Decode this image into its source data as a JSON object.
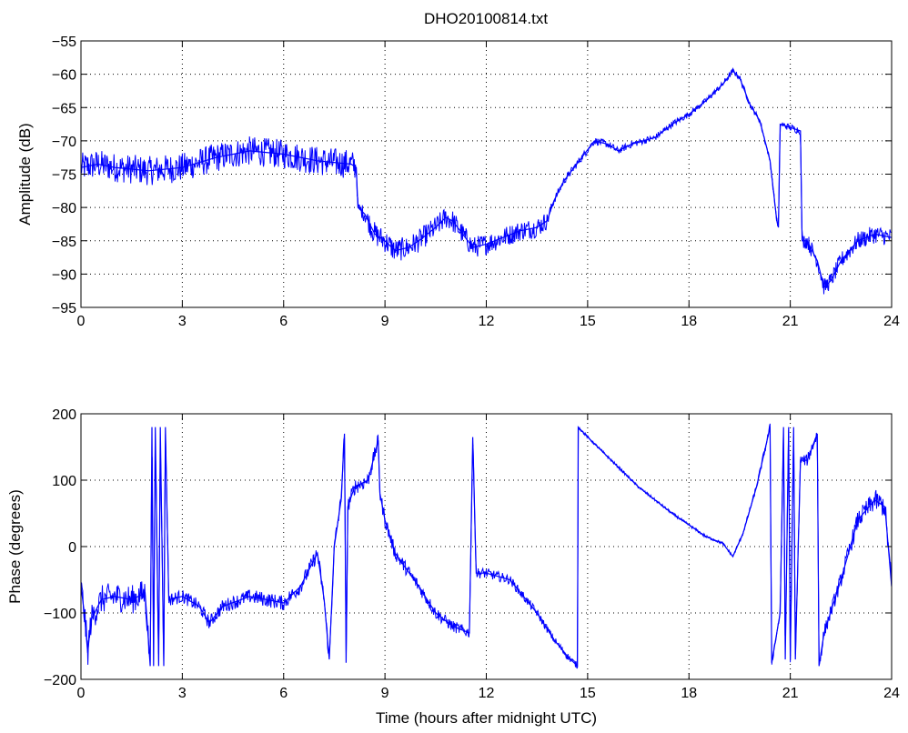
{
  "figure": {
    "title": "DHO20100814.txt",
    "background": "#ffffff",
    "line_color": "#0000ff",
    "grid_color": "#000000"
  },
  "chart_data": [
    {
      "type": "line",
      "title": "DHO20100814.txt",
      "xlabel": "",
      "ylabel": "Amplitude (dB)",
      "xlim": [
        0,
        24
      ],
      "ylim": [
        -95,
        -55
      ],
      "xticks": [
        0,
        3,
        6,
        9,
        12,
        15,
        18,
        21,
        24
      ],
      "yticks": [
        -95,
        -90,
        -85,
        -80,
        -75,
        -70,
        -65,
        -60,
        -55
      ],
      "xtick_labels": [
        "0",
        "3",
        "6",
        "9",
        "12",
        "15",
        "18",
        "21",
        "24"
      ],
      "ytick_labels": [
        "−95",
        "−90",
        "−85",
        "−80",
        "−75",
        "−70",
        "−65",
        "−60",
        "−55"
      ],
      "grid": true,
      "series": [
        {
          "color": "#0000ff",
          "noise_amplitude": [
            [
              0,
              2.2
            ],
            [
              8.1,
              2.2
            ],
            [
              8.2,
              0.8
            ],
            [
              8.6,
              1.8
            ],
            [
              13.7,
              1.5
            ],
            [
              14,
              0.6
            ],
            [
              20.4,
              0.4
            ],
            [
              21.3,
              0.6
            ],
            [
              21.4,
              1.2
            ],
            [
              24,
              1.4
            ]
          ],
          "points": [
            [
              0,
              -74
            ],
            [
              0.5,
              -73.5
            ],
            [
              1,
              -74
            ],
            [
              2,
              -74.5
            ],
            [
              3,
              -74
            ],
            [
              4,
              -72.5
            ],
            [
              5,
              -71.5
            ],
            [
              6,
              -72
            ],
            [
              7,
              -73
            ],
            [
              8,
              -73.5
            ],
            [
              8.15,
              -74
            ],
            [
              8.2,
              -80
            ],
            [
              8.4,
              -81
            ],
            [
              8.7,
              -84
            ],
            [
              9,
              -85
            ],
            [
              9.3,
              -86.5
            ],
            [
              9.7,
              -86
            ],
            [
              10,
              -85
            ],
            [
              10.5,
              -83
            ],
            [
              10.8,
              -81.5
            ],
            [
              11,
              -82
            ],
            [
              11.3,
              -84
            ],
            [
              11.6,
              -86
            ],
            [
              12,
              -85.5
            ],
            [
              12.5,
              -84.5
            ],
            [
              13,
              -83.5
            ],
            [
              13.5,
              -83
            ],
            [
              13.8,
              -82
            ],
            [
              14,
              -79
            ],
            [
              14.3,
              -76
            ],
            [
              14.6,
              -74
            ],
            [
              14.9,
              -72
            ],
            [
              15.2,
              -70
            ],
            [
              15.6,
              -70.5
            ],
            [
              15.9,
              -71.5
            ],
            [
              16.3,
              -70.5
            ],
            [
              17,
              -69.5
            ],
            [
              17.5,
              -67.5
            ],
            [
              18,
              -66
            ],
            [
              18.5,
              -64
            ],
            [
              19,
              -61.5
            ],
            [
              19.3,
              -59.5
            ],
            [
              19.5,
              -60.5
            ],
            [
              19.8,
              -64.5
            ],
            [
              20.1,
              -67
            ],
            [
              20.4,
              -73
            ],
            [
              20.6,
              -82
            ],
            [
              20.65,
              -83
            ],
            [
              20.7,
              -67.5
            ],
            [
              21,
              -68
            ],
            [
              21.3,
              -68.5
            ],
            [
              21.35,
              -85
            ],
            [
              21.5,
              -85
            ],
            [
              21.8,
              -88
            ],
            [
              22,
              -92
            ],
            [
              22.2,
              -91
            ],
            [
              22.5,
              -88
            ],
            [
              23,
              -85
            ],
            [
              23.5,
              -84
            ],
            [
              24,
              -84.5
            ]
          ]
        }
      ]
    },
    {
      "type": "line",
      "title": "",
      "xlabel": "Time (hours after midnight UTC)",
      "ylabel": "Phase (degrees)",
      "xlim": [
        0,
        24
      ],
      "ylim": [
        -200,
        200
      ],
      "xticks": [
        0,
        3,
        6,
        9,
        12,
        15,
        18,
        21,
        24
      ],
      "yticks": [
        -200,
        -100,
        0,
        100,
        200
      ],
      "xtick_labels": [
        "0",
        "3",
        "6",
        "9",
        "12",
        "15",
        "18",
        "21",
        "24"
      ],
      "ytick_labels": [
        "−200",
        "−100",
        "0",
        "100",
        "200"
      ],
      "grid": true,
      "series": [
        {
          "color": "#0000ff",
          "noise_amplitude": [
            [
              0,
              22
            ],
            [
              2,
              22
            ],
            [
              2.6,
              10
            ],
            [
              8,
              12
            ],
            [
              11.8,
              8
            ],
            [
              14.7,
              5
            ],
            [
              14.75,
              2
            ],
            [
              19.4,
              2
            ],
            [
              20.4,
              6
            ],
            [
              22,
              10
            ],
            [
              24,
              18
            ]
          ],
          "points": [
            [
              0,
              -60
            ],
            [
              0.1,
              -100
            ],
            [
              0.2,
              -160
            ],
            [
              0.3,
              -110
            ],
            [
              0.6,
              -80
            ],
            [
              1,
              -75
            ],
            [
              1.5,
              -80
            ],
            [
              1.9,
              -70
            ],
            [
              2.05,
              -180
            ],
            [
              2.1,
              180
            ],
            [
              2.15,
              -180
            ],
            [
              2.2,
              180
            ],
            [
              2.3,
              -180
            ],
            [
              2.35,
              180
            ],
            [
              2.45,
              -180
            ],
            [
              2.5,
              180
            ],
            [
              2.6,
              -80
            ],
            [
              3,
              -75
            ],
            [
              3.5,
              -90
            ],
            [
              3.8,
              -115
            ],
            [
              4.2,
              -90
            ],
            [
              5,
              -75
            ],
            [
              6,
              -85
            ],
            [
              6.5,
              -60
            ],
            [
              7,
              -10
            ],
            [
              7.2,
              -80
            ],
            [
              7.35,
              -170
            ],
            [
              7.5,
              0
            ],
            [
              7.7,
              70
            ],
            [
              7.8,
              170
            ],
            [
              7.85,
              -175
            ],
            [
              7.9,
              60
            ],
            [
              8.1,
              90
            ],
            [
              8.5,
              100
            ],
            [
              8.8,
              160
            ],
            [
              8.85,
              80
            ],
            [
              9,
              40
            ],
            [
              9.3,
              -10
            ],
            [
              10,
              -60
            ],
            [
              10.5,
              -100
            ],
            [
              11,
              -120
            ],
            [
              11.5,
              -130
            ],
            [
              11.6,
              165
            ],
            [
              11.7,
              -40
            ],
            [
              12,
              -40
            ],
            [
              12.7,
              -50
            ],
            [
              13.5,
              -100
            ],
            [
              14,
              -140
            ],
            [
              14.4,
              -165
            ],
            [
              14.7,
              -180
            ],
            [
              14.72,
              180
            ],
            [
              15,
              165
            ],
            [
              15.5,
              140
            ],
            [
              16.5,
              90
            ],
            [
              17.5,
              50
            ],
            [
              18.5,
              15
            ],
            [
              19,
              5
            ],
            [
              19.3,
              -15
            ],
            [
              19.6,
              20
            ],
            [
              20,
              90
            ],
            [
              20.4,
              180
            ],
            [
              20.45,
              -175
            ],
            [
              20.7,
              -100
            ],
            [
              20.8,
              180
            ],
            [
              20.85,
              -170
            ],
            [
              20.95,
              180
            ],
            [
              21,
              -170
            ],
            [
              21.1,
              180
            ],
            [
              21.15,
              -170
            ],
            [
              21.3,
              130
            ],
            [
              21.5,
              130
            ],
            [
              21.8,
              170
            ],
            [
              21.85,
              -180
            ],
            [
              22,
              -130
            ],
            [
              22.5,
              -50
            ],
            [
              23,
              40
            ],
            [
              23.5,
              70
            ],
            [
              23.8,
              60
            ],
            [
              24,
              -60
            ]
          ]
        }
      ]
    }
  ]
}
